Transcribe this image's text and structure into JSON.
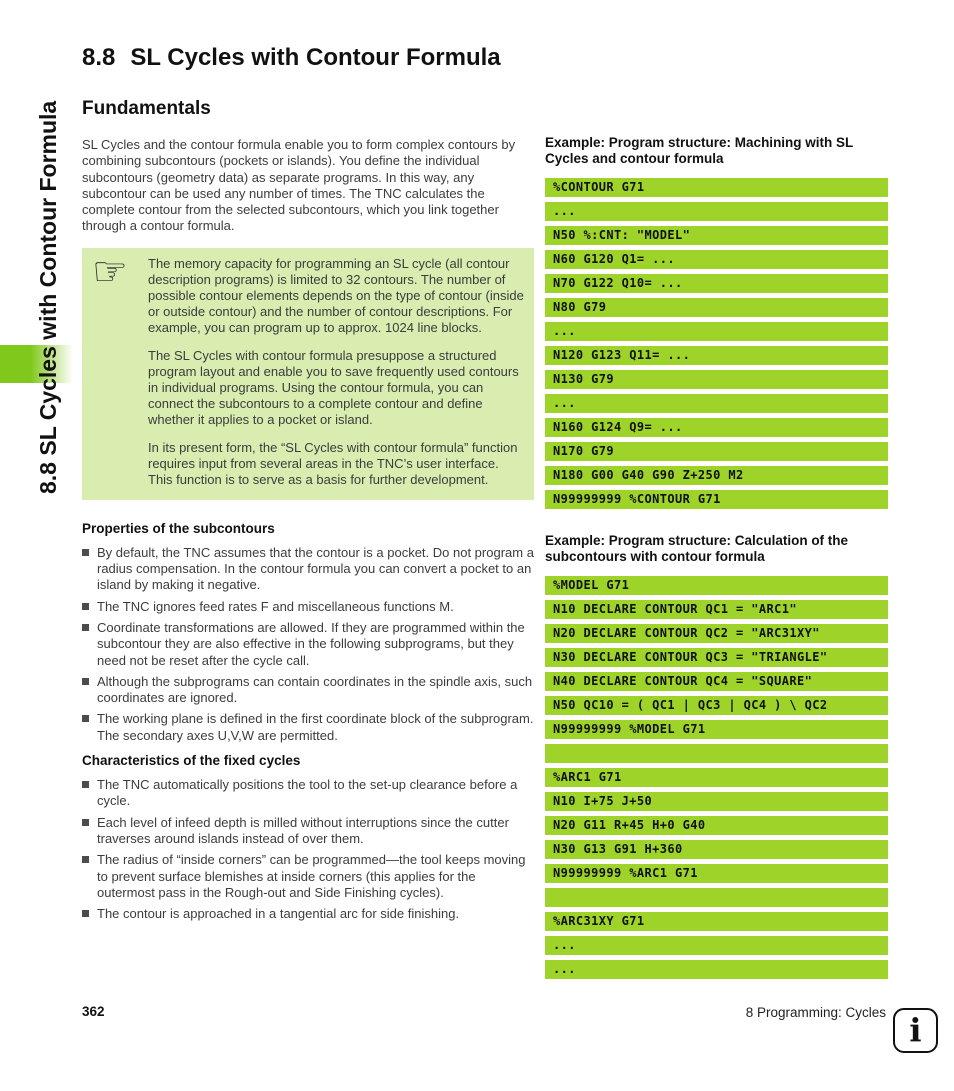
{
  "sidebar": {
    "label": "8.8 SL Cycles with Contour Formula"
  },
  "main": {
    "title_number": "8.8",
    "title_text": "SL Cycles with Contour Formula",
    "section_title": "Fundamentals",
    "intro": "SL Cycles and the contour formula enable you to form complex contours by combining subcontours (pockets or islands). You define the individual subcontours (geometry data) as separate programs. In this way, any subcontour can be used any number of times. The TNC calculates the complete contour from the selected subcontours, which you link together through a contour formula.",
    "note": {
      "icon": "pointing-hand",
      "icon_glyph": "☞",
      "paragraphs": [
        "The memory capacity for programming an SL cycle (all contour description programs) is limited to 32 contours. The number of possible contour elements depends on the type of contour (inside or outside contour) and the number of contour descriptions. For example, you can program up to approx. 1024 line blocks.",
        "The SL Cycles with contour formula presuppose a structured program layout and enable you to save frequently used contours in individual programs. Using the contour formula, you can connect the subcontours to a complete contour and define whether it applies to a pocket or island.",
        "In its present form, the “SL Cycles with contour formula” function requires input from several areas in the TNC’s user interface. This function is to serve as a basis for further development."
      ]
    },
    "properties": {
      "title": "Properties of the subcontours",
      "bullets": [
        "By default, the TNC assumes that the contour is a pocket. Do not program a radius compensation. In the contour formula you can convert a pocket to an island by making it negative.",
        "The TNC ignores feed rates F and miscellaneous functions M.",
        "Coordinate transformations are allowed. If they are programmed within the subcontour they are also effective in the following subprograms, but they need not be reset after the cycle call.",
        "Although the subprograms can contain coordinates in the spindle axis, such coordinates are ignored.",
        "The working plane is defined in the first coordinate block of the subprogram. The secondary axes U,V,W are permitted."
      ]
    },
    "characteristics": {
      "title": "Characteristics of the fixed cycles",
      "bullets": [
        "The TNC automatically positions the tool to the set-up clearance before a cycle.",
        "Each level of infeed depth is milled without interruptions since the cutter traverses around islands instead of over them.",
        "The radius of “inside corners” can be programmed—the tool keeps moving to prevent surface blemishes at inside corners (this applies for the outermost pass in the Rough-out and Side Finishing cycles).",
        "The contour is approached in a tangential arc for side finishing."
      ]
    }
  },
  "examples": [
    {
      "title": "Example: Program structure: Machining with SL Cycles and contour formula",
      "lines": [
        "%CONTOUR G71",
        "...",
        "N50 %:CNT: \"MODEL\"",
        "N60 G120 Q1= ...",
        "N70 G122 Q10= ...",
        "N80 G79",
        "...",
        "N120 G123 Q11= ...",
        "N130 G79",
        "...",
        "N160 G124 Q9= ...",
        "N170 G79",
        "N180 G00 G40 G90 Z+250 M2",
        "N99999999 %CONTOUR G71"
      ]
    },
    {
      "title": "Example: Program structure: Calculation of the subcontours with contour formula",
      "lines": [
        "%MODEL G71",
        "N10 DECLARE CONTOUR QC1 = \"ARC1\"",
        "N20 DECLARE CONTOUR QC2 = \"ARC31XY\"",
        "N30 DECLARE CONTOUR QC3 = \"TRIANGLE\"",
        "N40 DECLARE CONTOUR QC4 = \"SQUARE\"",
        "N50 QC10 = ( QC1 | QC3 | QC4 ) \\ QC2",
        "N99999999 %MODEL G71",
        "",
        "%ARC1 G71",
        "N10 I+75 J+50",
        "N20 G11 R+45 H+0 G40",
        "N30 G13 G91 H+360",
        "N99999999 %ARC1 G71",
        "",
        "%ARC31XY G71",
        "...",
        "..."
      ]
    }
  ],
  "footer": {
    "page_number": "362",
    "chapter": "8 Programming: Cycles",
    "info_icon_glyph": "i"
  },
  "colors": {
    "code_bar": "#9ed42a",
    "note_bg": "#d9edb1",
    "accent_green": "#80c91c"
  }
}
